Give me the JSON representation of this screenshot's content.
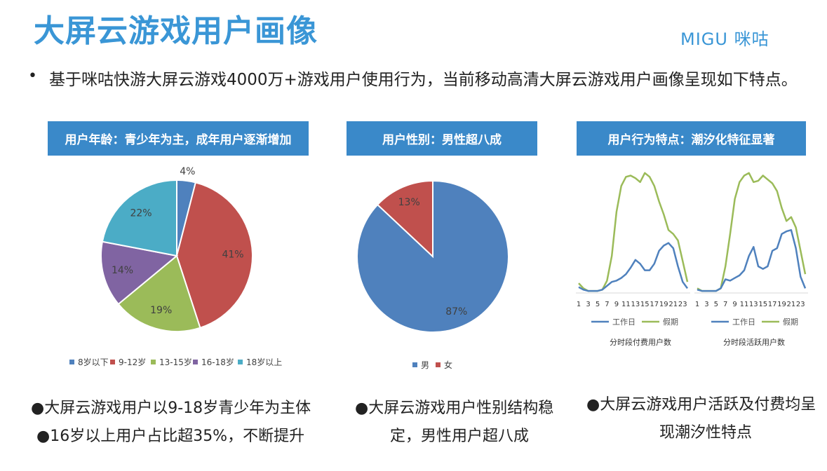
{
  "title": "大屏云游戏用户画像",
  "logo": "MIGU 咪咕",
  "intro": "基于咪咕快游大屏云游戏4000万+游戏用户使用行为，当前移动高清大屏云游戏用户画像呈现如下特点。",
  "boxes": {
    "age": "用户年龄：青少年为主，成年用户逐渐增加",
    "gender": "用户性别：男性超八成",
    "behavior": "用户行为特点：潮汐化特征显著"
  },
  "chart_data": [
    {
      "type": "pie",
      "categories": [
        "8岁以下",
        "9-12岁",
        "13-15岁",
        "16-18岁",
        "18岁以上"
      ],
      "values": [
        4,
        41,
        19,
        14,
        22
      ],
      "labels": [
        "4%",
        "41%",
        "19%",
        "14%",
        "22%"
      ],
      "colors": [
        "#4f81bd",
        "#c0504d",
        "#9bbb59",
        "#8064a2",
        "#4bacc6"
      ],
      "legend": "bottom"
    },
    {
      "type": "pie",
      "categories": [
        "男",
        "女"
      ],
      "values": [
        87,
        13
      ],
      "labels": [
        "87%",
        "13%"
      ],
      "colors": [
        "#4f81bd",
        "#c0504d"
      ],
      "legend": "bottom"
    },
    {
      "type": "line",
      "xlabel": "分时段付费用户数",
      "x_ticks": [
        "1",
        "3",
        "5",
        "7",
        "9",
        "11",
        "13",
        "15",
        "17",
        "19",
        "21",
        "23"
      ],
      "series": [
        {
          "name": "工作日",
          "color": "#4f81bd",
          "values": [
            4,
            2,
            1,
            1,
            1,
            2,
            5,
            8,
            9,
            11,
            14,
            19,
            25,
            22,
            17,
            17,
            22,
            32,
            36,
            38,
            34,
            20,
            8,
            3
          ]
        },
        {
          "name": "假期",
          "color": "#9bbb59",
          "values": [
            7,
            3,
            1,
            1,
            1,
            2,
            9,
            28,
            62,
            82,
            89,
            90,
            88,
            85,
            92,
            89,
            82,
            70,
            60,
            48,
            45,
            40,
            24,
            8
          ]
        }
      ],
      "ylim": [
        0,
        100
      ]
    },
    {
      "type": "line",
      "xlabel": "分时段活跃用户数",
      "x_ticks": [
        "1",
        "3",
        "5",
        "7",
        "9",
        "11",
        "13",
        "15",
        "17",
        "19",
        "21",
        "23"
      ],
      "series": [
        {
          "name": "工作日",
          "color": "#4f81bd",
          "values": [
            2,
            1,
            1,
            1,
            1,
            3,
            10,
            9,
            11,
            13,
            17,
            28,
            35,
            20,
            18,
            20,
            32,
            34,
            45,
            47,
            48,
            34,
            12,
            3
          ]
        },
        {
          "name": "假期",
          "color": "#9bbb59",
          "values": [
            3,
            1,
            1,
            1,
            1,
            3,
            20,
            45,
            72,
            85,
            90,
            92,
            85,
            86,
            90,
            87,
            84,
            78,
            65,
            55,
            58,
            50,
            32,
            14
          ]
        }
      ],
      "ylim": [
        0,
        100
      ]
    }
  ],
  "captions": {
    "age": [
      "●大屏云游戏用户以9-18岁青少年为主体",
      "●16岁以上用户占比超35%，不断提升"
    ],
    "gender": [
      "●大屏云游戏用户性别结构稳",
      "定，男性用户超八成"
    ],
    "behavior": [
      "●大屏云游戏用户活跃及付费均呈",
      "现潮汐性特点"
    ]
  }
}
